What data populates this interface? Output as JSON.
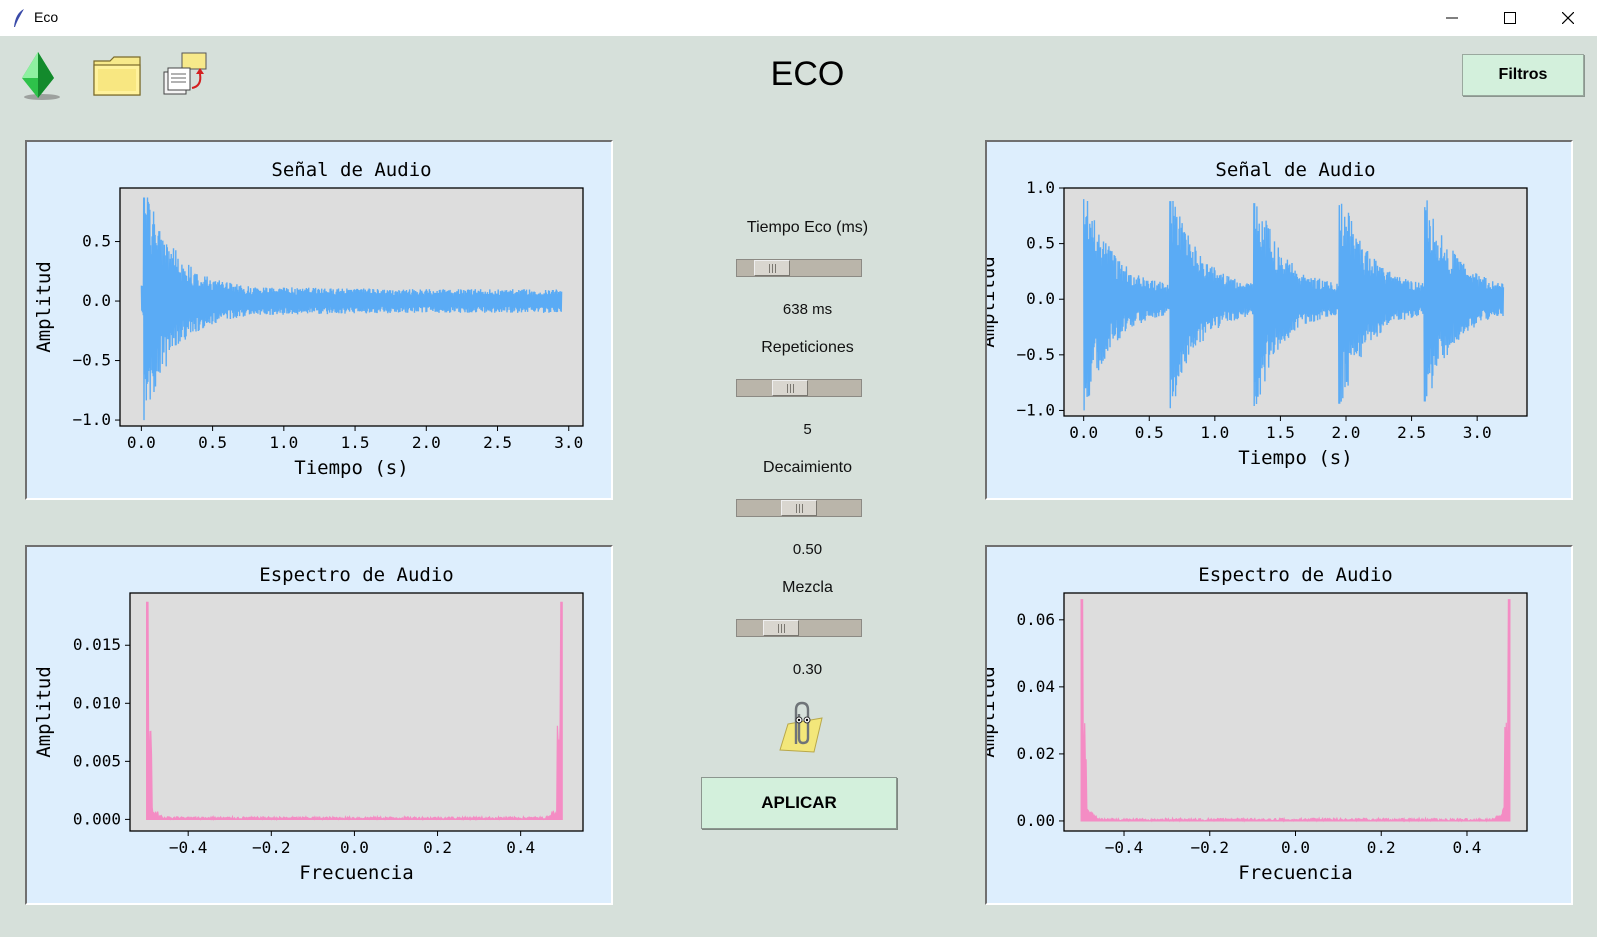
{
  "window": {
    "title": "Eco",
    "minimize_icon": "minimize-icon",
    "maximize_icon": "maximize-icon",
    "close_icon": "close-icon"
  },
  "header": {
    "title": "ECO",
    "filters_button": "Filtros"
  },
  "toolbar": [
    {
      "name": "gem-icon"
    },
    {
      "name": "folder-icon"
    },
    {
      "name": "load-files-icon"
    }
  ],
  "controls": {
    "echo_time": {
      "label": "Tiempo Eco (ms)",
      "value": "638 ms",
      "fraction": 0.19
    },
    "repetitions": {
      "label": "Repeticiones",
      "value": "5",
      "fraction": 0.4
    },
    "decay": {
      "label": "Decaimiento",
      "value": "0.50",
      "fraction": 0.5
    },
    "mix": {
      "label": "Mezcla",
      "value": "0.30",
      "fraction": 0.3
    },
    "apply_button": "APLICAR",
    "assistant_icon": "paperclip-icon"
  },
  "chart_data": [
    {
      "id": "input-signal",
      "type": "line",
      "title": "Señal de Audio",
      "xlabel": "Tiempo (s)",
      "ylabel": "Amplitud",
      "xlim": [
        -0.15,
        3.1
      ],
      "ylim": [
        -1.05,
        0.95
      ],
      "xticks": [
        0.0,
        0.5,
        1.0,
        1.5,
        2.0,
        2.5,
        3.0
      ],
      "xtick_labels": [
        "0.0",
        "0.5",
        "1.0",
        "1.5",
        "2.0",
        "2.5",
        "3.0"
      ],
      "yticks": [
        -1.0,
        -0.5,
        0.0,
        0.5
      ],
      "ytick_labels": [
        "−1.0",
        "−0.5",
        "0.0",
        "0.5"
      ],
      "series_color": "#5aabf5",
      "duration": 2.95,
      "onsets": [
        0.02
      ],
      "peak_top": 0.87,
      "peak_bottom": -1.0
    },
    {
      "id": "output-signal",
      "type": "line",
      "title": "Señal de Audio",
      "xlabel": "Tiempo (s)",
      "ylabel": "Amplitud",
      "xlim": [
        -0.15,
        3.38
      ],
      "ylim": [
        -1.05,
        1.0
      ],
      "xticks": [
        0.0,
        0.5,
        1.0,
        1.5,
        2.0,
        2.5,
        3.0
      ],
      "xtick_labels": [
        "0.0",
        "0.5",
        "1.0",
        "1.5",
        "2.0",
        "2.5",
        "3.0"
      ],
      "yticks": [
        -1.0,
        -0.5,
        0.0,
        0.5,
        1.0
      ],
      "ytick_labels": [
        "−1.0",
        "−0.5",
        "0.0",
        "0.5",
        "1.0"
      ],
      "series_color": "#5aabf5",
      "duration": 3.2,
      "onsets": [
        0.0,
        0.66,
        1.3,
        1.95,
        2.6
      ],
      "peak_top": 0.9,
      "peak_bottom": -1.0
    },
    {
      "id": "input-spectrum",
      "type": "line",
      "title": "Espectro de Audio",
      "xlabel": "Frecuencia",
      "ylabel": "Amplitud",
      "xlim": [
        -0.54,
        0.55
      ],
      "ylim": [
        -0.001,
        0.0195
      ],
      "xticks": [
        -0.4,
        -0.2,
        0.0,
        0.2,
        0.4
      ],
      "xtick_labels": [
        "−0.4",
        "−0.2",
        "0.0",
        "0.2",
        "0.4"
      ],
      "yticks": [
        0.0,
        0.005,
        0.01,
        0.015
      ],
      "ytick_labels": [
        "0.000",
        "0.005",
        "0.010",
        "0.015"
      ],
      "series_color": "#f48cc4",
      "peak": 0.0187
    },
    {
      "id": "output-spectrum",
      "type": "line",
      "title": "Espectro de Audio",
      "xlabel": "Frecuencia",
      "ylabel": "Amplitud",
      "xlim": [
        -0.54,
        0.54
      ],
      "ylim": [
        -0.003,
        0.068
      ],
      "xticks": [
        -0.4,
        -0.2,
        0.0,
        0.2,
        0.4
      ],
      "xtick_labels": [
        "−0.4",
        "−0.2",
        "0.0",
        "0.2",
        "0.4"
      ],
      "yticks": [
        0.0,
        0.02,
        0.04,
        0.06
      ],
      "ytick_labels": [
        "0.00",
        "0.02",
        "0.04",
        "0.06"
      ],
      "series_color": "#f48cc4",
      "peak": 0.066
    }
  ]
}
